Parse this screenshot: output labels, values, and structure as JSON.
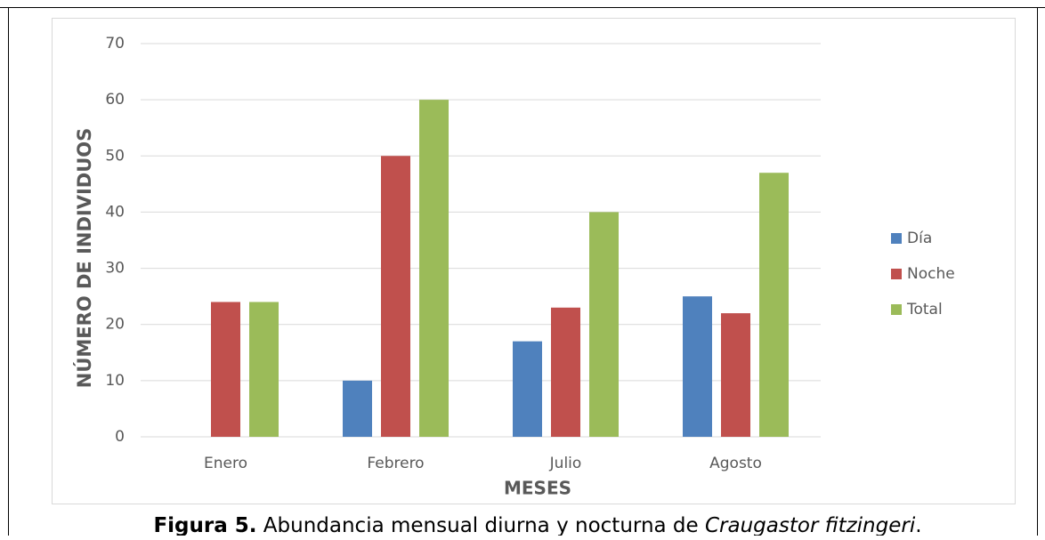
{
  "chart_data": {
    "type": "bar",
    "y_axis_title": "NÚMERO DE INDIVIDUOS",
    "x_axis_title": "MESES",
    "categories": [
      "Enero",
      "Febrero",
      "Julio",
      "Agosto"
    ],
    "series": [
      {
        "name": "Día",
        "color": "#4f81bd",
        "values": [
          0,
          10,
          17,
          25
        ]
      },
      {
        "name": "Noche",
        "color": "#c0504d",
        "values": [
          24,
          50,
          23,
          22
        ]
      },
      {
        "name": "Total",
        "color": "#9bbb59",
        "values": [
          24,
          60,
          40,
          47
        ]
      }
    ],
    "ylim": [
      0,
      70
    ],
    "yticks": [
      0,
      10,
      20,
      30,
      40,
      50,
      60,
      70
    ],
    "grid": true,
    "legend": "right"
  },
  "caption": {
    "label": "Figura 5.",
    "text": "Abundancia mensual diurna y nocturna de",
    "species": "Craugastor fitzingeri",
    "end": "."
  }
}
